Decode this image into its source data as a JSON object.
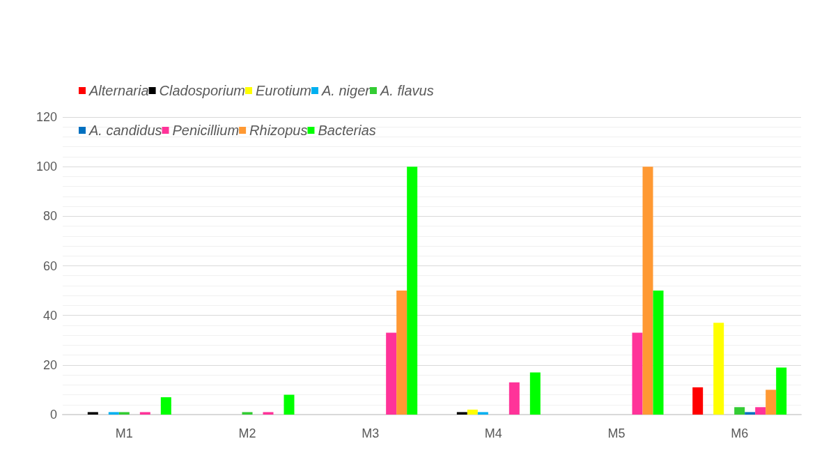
{
  "chart_data": {
    "type": "bar",
    "categories": [
      "M1",
      "M2",
      "M3",
      "M4",
      "M5",
      "M6"
    ],
    "series": [
      {
        "name": "Alternaria",
        "color": "#ff0000",
        "values": [
          0,
          0,
          0,
          0,
          0,
          11
        ]
      },
      {
        "name": "Cladosporium",
        "color": "#000000",
        "values": [
          1,
          0,
          0,
          1,
          0,
          0
        ]
      },
      {
        "name": "Eurotium",
        "color": "#ffff00",
        "values": [
          0,
          0,
          0,
          2,
          0,
          37
        ]
      },
      {
        "name": "A. niger",
        "color": "#00b0f0",
        "values": [
          1,
          0,
          0,
          1,
          0,
          0
        ]
      },
      {
        "name": "A. flavus",
        "color": "#33cc33",
        "values": [
          1,
          1,
          0,
          0,
          0,
          3
        ]
      },
      {
        "name": "A. candidus",
        "color": "#0070c0",
        "values": [
          0,
          0,
          0,
          0,
          0,
          1
        ]
      },
      {
        "name": "Penicillium",
        "color": "#ff3399",
        "values": [
          1,
          1,
          33,
          13,
          33,
          3
        ]
      },
      {
        "name": "Rhizopus",
        "color": "#ff9933",
        "values": [
          0,
          0,
          50,
          0,
          100,
          10
        ]
      },
      {
        "name": "Bacterias",
        "color": "#00ff00",
        "values": [
          7,
          8,
          100,
          17,
          50,
          19
        ]
      }
    ],
    "ylim": [
      0,
      120
    ],
    "yticks": [
      0,
      20,
      40,
      60,
      80,
      100,
      120
    ],
    "grid": "y",
    "legend": "top"
  }
}
